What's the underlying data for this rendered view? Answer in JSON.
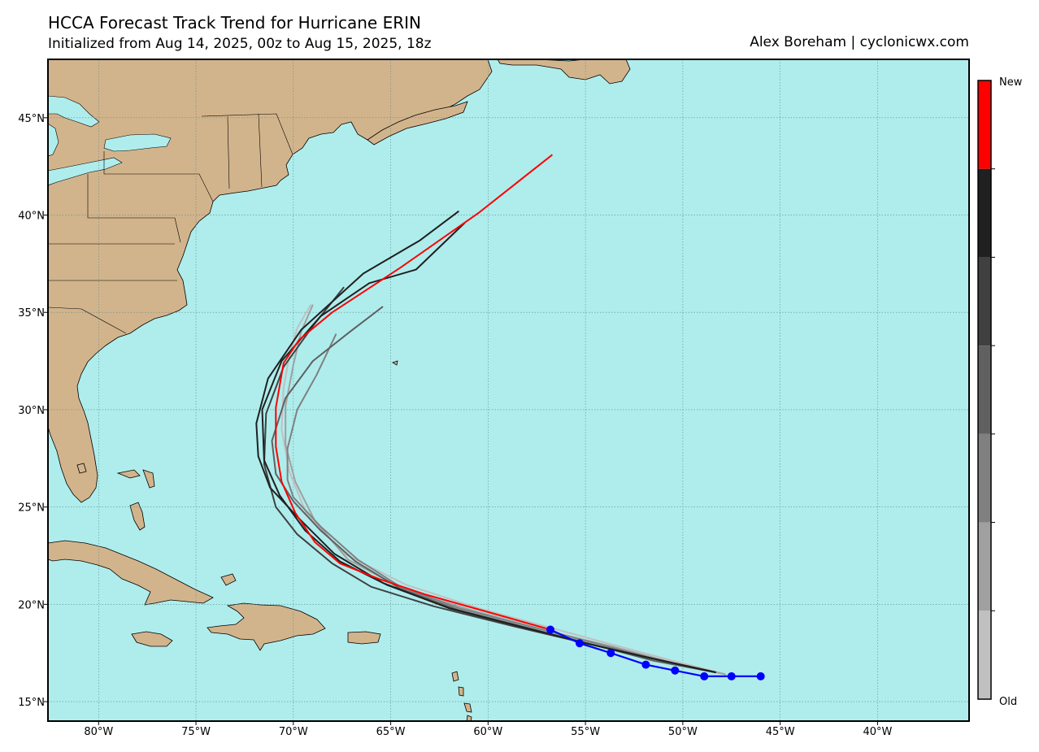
{
  "title": "HCCA Forecast Track Trend for Hurricane ERIN",
  "subtitle": "Initialized from Aug 14, 2025, 00z to Aug 15, 2025, 18z",
  "credit": "Alex Boreham | cyclonicwx.com",
  "colors": {
    "ocean": "#afeded",
    "land": "#d2b48c",
    "grid": "#5c8a8a",
    "observed": "#0000ff",
    "newest": "#ff0000"
  },
  "chart_data": {
    "type": "line",
    "xlabel": "",
    "ylabel": "",
    "xlim": [
      -82.6,
      -35.3
    ],
    "ylim": [
      14,
      48
    ],
    "x_ticks": [
      -80,
      -75,
      -70,
      -65,
      -60,
      -55,
      -50,
      -45,
      -40
    ],
    "x_tick_labels": [
      "80°W",
      "75°W",
      "70°W",
      "65°W",
      "60°W",
      "55°W",
      "50°W",
      "45°W",
      "40°W"
    ],
    "y_ticks": [
      15,
      20,
      25,
      30,
      35,
      40,
      45
    ],
    "y_tick_labels": [
      "15°N",
      "20°N",
      "25°N",
      "30°N",
      "35°N",
      "40°N",
      "45°N"
    ],
    "grid": true,
    "colorbar": {
      "top_label": "New",
      "bottom_label": "Old",
      "colors": [
        "#ff0000",
        "#202020",
        "#404040",
        "#606060",
        "#808080",
        "#a0a0a0",
        "#c0c0c0"
      ]
    },
    "observed_track": {
      "lon": [
        -46.0,
        -47.5,
        -48.9,
        -50.4,
        -51.9,
        -53.7,
        -55.3,
        -56.8
      ],
      "lat": [
        16.3,
        16.3,
        16.3,
        16.6,
        16.9,
        17.5,
        18.0,
        18.7
      ]
    },
    "series": [
      {
        "color": "#c0c0c0",
        "lon": [
          -47.8,
          -50.5,
          -53.5,
          -56.8,
          -60.5,
          -64.2,
          -67.4,
          -69.3,
          -70.2,
          -70.6,
          -70.5,
          -70.2,
          -69.8,
          -69.1
        ],
        "lat": [
          16.4,
          17.1,
          17.9,
          18.8,
          19.8,
          21.0,
          22.6,
          24.6,
          26.8,
          29.0,
          31.1,
          32.8,
          34.2,
          35.4
        ]
      },
      {
        "color": "#a0a0a0",
        "lon": [
          -47.8,
          -50.5,
          -53.5,
          -56.8,
          -60.5,
          -64.2,
          -67.2,
          -68.9,
          -69.9,
          -70.4,
          -70.4,
          -70.0,
          -69.6,
          -69.0
        ],
        "lat": [
          16.4,
          17.0,
          17.8,
          18.6,
          19.6,
          20.7,
          22.3,
          24.3,
          26.3,
          28.2,
          30.2,
          32.3,
          34.0,
          35.4
        ]
      },
      {
        "color": "#808080",
        "lon": [
          -48.3,
          -51.5,
          -54.5,
          -58.0,
          -61.5,
          -64.5,
          -66.7,
          -68.6,
          -70.0,
          -70.3,
          -70.3,
          -69.8,
          -68.8,
          -67.8
        ],
        "lat": [
          16.5,
          17.2,
          18.0,
          18.9,
          19.8,
          20.9,
          22.3,
          24.0,
          25.5,
          26.4,
          28.0,
          30.0,
          31.8,
          33.9
        ]
      },
      {
        "color": "#606060",
        "lon": [
          -48.3,
          -51.5,
          -54.5,
          -58.0,
          -61.5,
          -64.5,
          -66.8,
          -68.6,
          -70.0,
          -70.9,
          -71.1,
          -70.4,
          -69.0,
          -67.1,
          -65.4
        ],
        "lat": [
          16.5,
          17.1,
          17.9,
          18.8,
          19.7,
          20.8,
          22.2,
          23.8,
          25.3,
          26.7,
          28.4,
          30.6,
          32.5,
          34.0,
          35.3
        ]
      },
      {
        "color": "#404040",
        "lon": [
          -48.3,
          -51.5,
          -55.0,
          -58.8,
          -62.8,
          -66.0,
          -68.0,
          -69.8,
          -70.9,
          -71.5,
          -71.4,
          -70.5,
          -69.0,
          -67.4
        ],
        "lat": [
          16.5,
          17.2,
          18.0,
          18.9,
          19.9,
          20.9,
          22.1,
          23.6,
          25.0,
          27.2,
          29.8,
          32.2,
          34.3,
          36.3
        ]
      },
      {
        "color": "#202020",
        "lon": [
          -48.3,
          -51.5,
          -55.0,
          -58.5,
          -62.0,
          -65.2,
          -67.6,
          -69.4,
          -70.7,
          -71.5,
          -71.6,
          -70.6,
          -68.6,
          -66.1,
          -63.7,
          -61.2
        ],
        "lat": [
          16.5,
          17.2,
          18.0,
          18.9,
          19.8,
          21.0,
          22.2,
          23.8,
          25.6,
          27.4,
          30.0,
          32.5,
          34.8,
          36.5,
          37.2,
          39.6
        ]
      },
      {
        "color": "#202020",
        "lon": [
          -48.3,
          -51.5,
          -55.0,
          -58.5,
          -62.0,
          -65.4,
          -67.9,
          -69.7,
          -71.2,
          -71.8,
          -71.9,
          -71.3,
          -69.6,
          -66.4,
          -63.5,
          -61.5
        ],
        "lat": [
          16.5,
          17.2,
          18.0,
          18.9,
          19.8,
          21.1,
          22.6,
          24.4,
          26.0,
          27.6,
          29.3,
          31.6,
          34.1,
          37.0,
          38.7,
          40.2
        ]
      },
      {
        "color": "#ff0000",
        "lon": [
          -56.8,
          -60.0,
          -63.2,
          -65.6,
          -67.6,
          -68.9,
          -69.9,
          -70.6,
          -70.9,
          -70.9,
          -70.5,
          -69.7,
          -68.0,
          -64.5,
          -60.5,
          -56.7
        ],
        "lat": [
          18.7,
          19.6,
          20.5,
          21.3,
          22.1,
          23.2,
          24.7,
          26.3,
          28.1,
          30.1,
          32.4,
          33.6,
          35.0,
          37.3,
          40.1,
          43.1
        ]
      }
    ]
  }
}
